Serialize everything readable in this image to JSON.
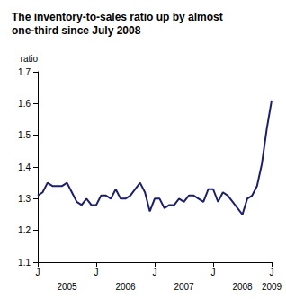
{
  "chart_data": {
    "type": "line",
    "title": "The inventory-to-sales ratio up by almost one-third since July 2008",
    "y_label": "ratio",
    "categories": [
      "J",
      null,
      null,
      null,
      null,
      null,
      null,
      null,
      null,
      null,
      null,
      null,
      "J",
      null,
      null,
      null,
      null,
      null,
      null,
      null,
      null,
      null,
      null,
      null,
      "J",
      null,
      null,
      null,
      null,
      null,
      null,
      null,
      null,
      null,
      null,
      null,
      "J",
      null,
      null,
      null,
      null,
      null,
      null,
      null,
      null,
      null,
      null,
      null,
      "J"
    ],
    "year_labels": [
      "2005",
      "2006",
      "2007",
      "2008",
      "2009"
    ],
    "values": [
      1.31,
      1.32,
      1.35,
      1.34,
      1.34,
      1.34,
      1.35,
      1.32,
      1.29,
      1.28,
      1.3,
      1.28,
      1.28,
      1.31,
      1.31,
      1.3,
      1.33,
      1.3,
      1.3,
      1.31,
      1.33,
      1.35,
      1.32,
      1.26,
      1.3,
      1.3,
      1.27,
      1.28,
      1.28,
      1.3,
      1.29,
      1.31,
      1.31,
      1.3,
      1.29,
      1.33,
      1.33,
      1.29,
      1.32,
      1.31,
      1.29,
      1.27,
      1.25,
      1.3,
      1.31,
      1.34,
      1.41,
      1.52,
      1.61
    ],
    "color": "#1b1f6b",
    "ylim": [
      1.1,
      1.7
    ],
    "yticks": [
      1.1,
      1.2,
      1.3,
      1.4,
      1.5,
      1.6,
      1.7
    ],
    "grid": false
  }
}
